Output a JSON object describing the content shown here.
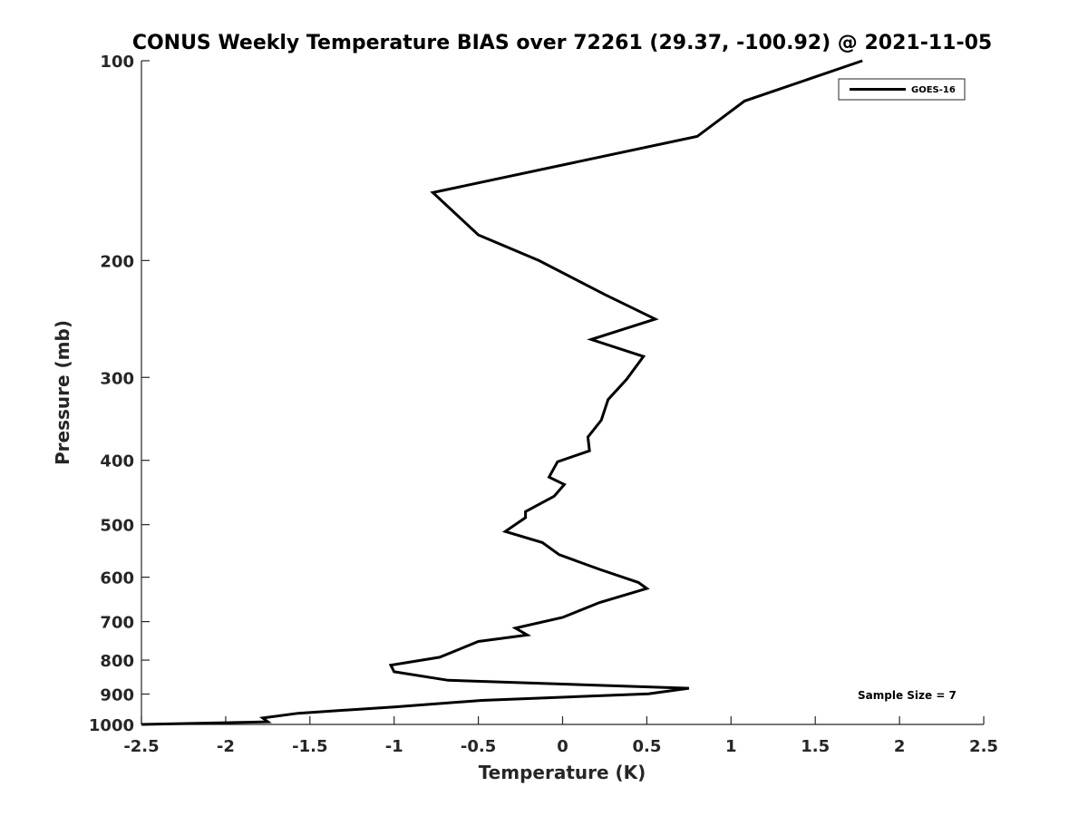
{
  "chart_data": {
    "type": "line",
    "title": "CONUS Weekly Temperature BIAS over 72261 (29.37, -100.92) @ 2021-11-05",
    "xlabel": "Temperature (K)",
    "ylabel": "Pressure (mb)",
    "xlim": [
      -2.5,
      2.5
    ],
    "ylim": [
      1000,
      100
    ],
    "y_scale": "log",
    "y_reversed": true,
    "x_ticks": [
      "-2.5",
      "-2",
      "-1.5",
      "-1",
      "-0.5",
      "0",
      "0.5",
      "1",
      "1.5",
      "2",
      "2.5"
    ],
    "x_tick_values": [
      -2.5,
      -2,
      -1.5,
      -1,
      -0.5,
      0,
      0.5,
      1,
      1.5,
      2,
      2.5
    ],
    "y_ticks": [
      "100",
      "200",
      "300",
      "400",
      "500",
      "600",
      "700",
      "800",
      "900",
      "1000"
    ],
    "y_tick_values": [
      100,
      200,
      300,
      400,
      500,
      600,
      700,
      800,
      900,
      1000
    ],
    "grid": false,
    "legend_position": "top-right",
    "series": [
      {
        "name": "GOES-16",
        "color": "#000000",
        "x": [
          1.78,
          1.08,
          0.8,
          -0.77,
          -0.5,
          -0.14,
          0.25,
          0.55,
          0.17,
          0.48,
          0.38,
          0.27,
          0.23,
          0.15,
          0.16,
          -0.03,
          -0.08,
          0.01,
          -0.05,
          -0.22,
          -0.22,
          -0.34,
          -0.12,
          -0.02,
          0.22,
          0.45,
          0.5,
          0.22,
          0.0,
          -0.28,
          -0.21,
          -0.5,
          -0.73,
          -1.02,
          -1.0,
          -0.68,
          0.75,
          0.51,
          -0.48,
          -1.0,
          -1.57,
          -1.78,
          -1.75,
          -2.5
        ],
        "y": [
          100,
          115,
          130,
          158,
          183,
          200,
          225,
          245,
          263,
          279,
          302,
          324,
          348,
          369,
          387,
          402,
          424,
          435,
          453,
          478,
          488,
          512,
          532,
          555,
          584,
          611,
          624,
          655,
          690,
          716,
          733,
          750,
          792,
          814,
          833,
          858,
          882,
          899,
          920,
          941,
          962,
          978,
          991,
          1000
        ]
      }
    ],
    "annotations": [
      "Sample Size = 7"
    ]
  }
}
